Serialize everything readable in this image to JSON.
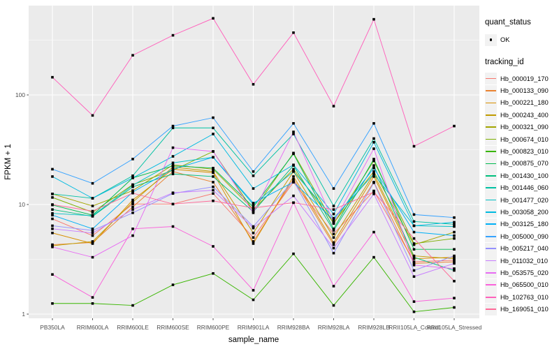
{
  "colors": {
    "panel_bg": "#EBEBEB",
    "plot_bg": "#FFFFFF",
    "grid": "#FFFFFF",
    "tick_label": "#4D4D4D",
    "axis_title": "#000000",
    "legend_key_bg": "#F2F2F2",
    "point": "#000000"
  },
  "chart_data": {
    "type": "line",
    "title": "",
    "xlabel": "sample_name",
    "ylabel": "FPKM + 1",
    "y_scale": "log10",
    "y_ticks": [
      "1",
      "10",
      "100"
    ],
    "ylim": [
      0.93,
      650
    ],
    "grid": "on",
    "legend_position": "right",
    "point_marker": {
      "shape": "square",
      "color": "#000000",
      "size": 3.6
    },
    "categories": [
      "PB350LA",
      "RRIM600LA",
      "RRIM600LE",
      "RRIM600SE",
      "RRIM600PE",
      "RRIM901LA",
      "RRIM928BA",
      "RRIM928LA",
      "RRIM928LB",
      "RRII105LA_Control",
      "RRII105LA_Stressed"
    ],
    "legend": {
      "quant_status_title": "quant_status",
      "quant_status_items": [
        {
          "label": "OK",
          "marker": "point",
          "color": "#000000"
        }
      ],
      "tracking_id_title": "tracking_id"
    },
    "series": [
      {
        "name": "Hb_000019_170",
        "color": "#F8766D",
        "values": [
          7.4,
          5.2,
          10.1,
          10.1,
          12.6,
          5.0,
          16.0,
          5.4,
          13.3,
          3.0,
          3.1
        ]
      },
      {
        "name": "Hb_000133_090",
        "color": "#EA8331",
        "values": [
          4.3,
          4.5,
          9.5,
          20.0,
          16.0,
          4.6,
          17.0,
          4.3,
          16.0,
          2.9,
          3.0
        ]
      },
      {
        "name": "Hb_000221_180",
        "color": "#D89000",
        "values": [
          5.5,
          4.4,
          11.0,
          21.0,
          19.5,
          4.4,
          18.0,
          4.5,
          18.0,
          3.2,
          3.3
        ]
      },
      {
        "name": "Hb_000243_400",
        "color": "#C09B00",
        "values": [
          4.2,
          4.6,
          10.5,
          22.0,
          20.0,
          5.5,
          20.0,
          5.0,
          19.0,
          3.4,
          3.2
        ]
      },
      {
        "name": "Hb_000321_090",
        "color": "#A3A500",
        "values": [
          12.5,
          9.7,
          13.4,
          23.0,
          21.0,
          9.0,
          21.0,
          6.8,
          20.0,
          4.3,
          5.6
        ]
      },
      {
        "name": "Hb_000674_010",
        "color": "#7CAE00",
        "values": [
          11.6,
          8.5,
          15.2,
          20.5,
          30.5,
          8.8,
          29.5,
          6.7,
          25.0,
          4.4,
          4.9
        ]
      },
      {
        "name": "Hb_000823_010",
        "color": "#39B600",
        "values": [
          1.25,
          1.25,
          1.2,
          1.85,
          2.35,
          1.35,
          3.55,
          1.2,
          3.3,
          1.05,
          1.15
        ]
      },
      {
        "name": "Hb_000875_070",
        "color": "#00BB4E",
        "values": [
          9.9,
          8.0,
          17.5,
          22.5,
          21.5,
          9.5,
          29.0,
          6.0,
          26.0,
          3.9,
          3.9
        ]
      },
      {
        "name": "Hb_001430_100",
        "color": "#00BF7D",
        "values": [
          9.0,
          7.8,
          14.5,
          19.0,
          18.0,
          8.6,
          22.7,
          5.8,
          22.7,
          3.3,
          2.5
        ]
      },
      {
        "name": "Hb_001446_060",
        "color": "#00C1A3",
        "values": [
          12.5,
          11.4,
          18.3,
          50.0,
          50.0,
          18.3,
          44.0,
          9.7,
          40.0,
          7.0,
          6.6
        ]
      },
      {
        "name": "Hb_001477_020",
        "color": "#00BFC4",
        "values": [
          8.3,
          7.9,
          15.0,
          24.0,
          27.0,
          10.0,
          20.0,
          7.5,
          19.0,
          6.4,
          6.3
        ]
      },
      {
        "name": "Hb_003058_200",
        "color": "#00BAE0",
        "values": [
          18.0,
          11.4,
          17.5,
          27.5,
          44.0,
          14.0,
          23.0,
          8.2,
          37.0,
          6.4,
          6.9
        ]
      },
      {
        "name": "Hb_003125_180",
        "color": "#00B0F6",
        "values": [
          8.0,
          6.0,
          13.0,
          21.0,
          27.0,
          10.3,
          16.0,
          7.2,
          21.5,
          5.6,
          5.2
        ]
      },
      {
        "name": "Hb_005000_090",
        "color": "#35A2FF",
        "values": [
          21.0,
          15.6,
          26.0,
          52.0,
          62.0,
          20.0,
          55.0,
          14.0,
          55.0,
          8.1,
          7.6
        ]
      },
      {
        "name": "Hb_005217_040",
        "color": "#9590FF",
        "values": [
          6.4,
          5.8,
          8.4,
          12.6,
          14.5,
          6.3,
          16.5,
          3.6,
          15.8,
          2.5,
          3.4
        ]
      },
      {
        "name": "Hb_011032_010",
        "color": "#C77CFF",
        "values": [
          6.0,
          5.5,
          9.0,
          12.8,
          13.5,
          6.1,
          12.0,
          4.0,
          12.5,
          2.2,
          2.9
        ]
      },
      {
        "name": "Hb_053575_020",
        "color": "#E76BF3",
        "values": [
          4.1,
          3.3,
          5.2,
          33.0,
          30.5,
          8.4,
          46.0,
          6.9,
          32.3,
          2.8,
          2.6
        ]
      },
      {
        "name": "Hb_065500_010",
        "color": "#FA62DB",
        "values": [
          2.3,
          1.42,
          6.0,
          6.3,
          4.15,
          1.65,
          10.4,
          1.8,
          5.6,
          1.3,
          1.4
        ]
      },
      {
        "name": "Hb_102763_010",
        "color": "#FF62BC",
        "values": [
          145,
          65,
          230,
          350,
          500,
          125,
          370,
          79,
          490,
          34,
          52
        ]
      },
      {
        "name": "Hb_169051_010",
        "color": "#FF6A98",
        "values": [
          10.0,
          8.7,
          12.7,
          10.1,
          10.8,
          9.3,
          10.4,
          9.0,
          13.0,
          4.9,
          2.0
        ]
      }
    ]
  }
}
